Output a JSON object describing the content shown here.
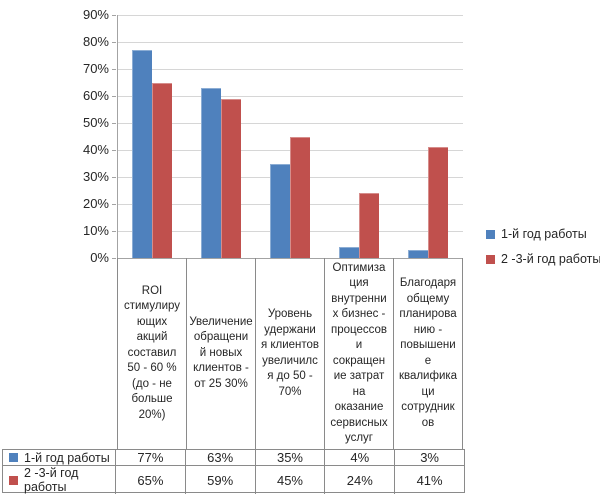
{
  "chart_data": {
    "type": "bar",
    "title": "",
    "grid": true,
    "legend_position": "right",
    "data_table_shown": true,
    "categories": [
      "ROI\nстимулиру\nющих\nакций\nсоставил\n50 - 60 %\n(до - не\nбольше\n20%)",
      "Увеличение\nобращени\nй новых\nклиентов -\nот 25 30%",
      "Уровень\nудержани\nя клиентов\nувеличилс\nя до 50 -\n70%",
      "Оптимиза\nция\nвнутренни\nх бизнес -\nпроцессов\nи\nсокращен\nие затрат\nна\nоказание\nсервисных\nуслуг",
      "Благодаря\nобщему\nпланирова\nнию -\nповышени\nе\nквалифика\nци\nсотрудник\nов"
    ],
    "series": [
      {
        "name": "1-й год работы",
        "color": "#4f81bd",
        "values": [
          77,
          63,
          35,
          4,
          3
        ],
        "display_values": [
          "77%",
          "63%",
          "35%",
          "4%",
          "3%"
        ]
      },
      {
        "name": "2 -3-й год работы",
        "color": "#c0504d",
        "values": [
          65,
          59,
          45,
          24,
          41
        ],
        "display_values": [
          "65%",
          "59%",
          "45%",
          "24%",
          "41%"
        ]
      }
    ],
    "y_axis": {
      "min": 0,
      "max": 90,
      "step": 10,
      "tick_labels": [
        "0%",
        "10%",
        "20%",
        "30%",
        "40%",
        "50%",
        "60%",
        "70%",
        "80%",
        "90%"
      ]
    },
    "colors": {
      "gridline": "#d6d6d6",
      "axis": "#a3a3a3",
      "table_border": "#8a8a8a",
      "text": "#262626",
      "background": "#ffffff"
    }
  }
}
